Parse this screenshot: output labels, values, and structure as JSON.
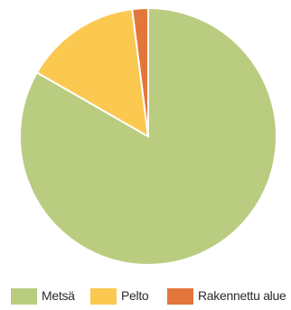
{
  "chart_data": {
    "type": "pie",
    "title": "",
    "start_angle_deg": 0,
    "direction": "clockwise",
    "categories": [
      "Metsä",
      "Pelto",
      "Rakennettu alue"
    ],
    "values": [
      83.3,
      14.7,
      2.0
    ],
    "colors": [
      "#b9cc80",
      "#fbc850",
      "#e3763b"
    ],
    "legend": {
      "position": "bottom",
      "entries": [
        "Metsä",
        "Pelto",
        "Rakennettu alue"
      ]
    }
  }
}
